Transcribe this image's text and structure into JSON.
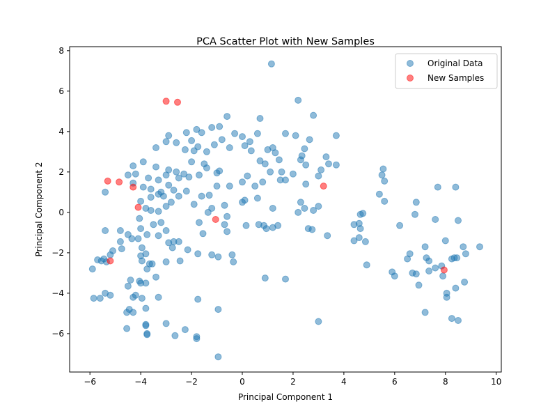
{
  "chart_data": {
    "type": "scatter",
    "title": "PCA Scatter Plot with New Samples",
    "xlabel": "Principal Component 1",
    "ylabel": "Principal Component 2",
    "xlim": [
      -6.8,
      10.2
    ],
    "ylim": [
      -7.9,
      8.2
    ],
    "xticks": [
      -6,
      -4,
      -2,
      0,
      2,
      4,
      6,
      8,
      10
    ],
    "yticks": [
      -6,
      -4,
      -2,
      0,
      2,
      4,
      6,
      8
    ],
    "grid": false,
    "legend_position": "top-right",
    "series": [
      {
        "name": "Original Data",
        "color": "#1f77b4",
        "opacity": 0.5,
        "points": [
          [
            1.15,
            7.35
          ],
          [
            2.2,
            5.55
          ],
          [
            2.8,
            4.8
          ],
          [
            2.65,
            3.6
          ],
          [
            1.7,
            3.9
          ],
          [
            2.1,
            3.8
          ],
          [
            0.7,
            4.65
          ],
          [
            3.7,
            3.8
          ],
          [
            -0.6,
            4.75
          ],
          [
            -0.9,
            4.25
          ],
          [
            -1.2,
            4.2
          ],
          [
            -1.6,
            3.95
          ],
          [
            -1.8,
            4.1
          ],
          [
            -2.2,
            3.95
          ],
          [
            -2.9,
            3.8
          ],
          [
            -3.4,
            3.2
          ],
          [
            -3.0,
            3.5
          ],
          [
            -2.6,
            3.45
          ],
          [
            -2.25,
            3.1
          ],
          [
            -1.75,
            3.25
          ],
          [
            -1.4,
            3.0
          ],
          [
            -1.9,
            3.05
          ],
          [
            -2.0,
            3.55
          ],
          [
            -1.1,
            3.35
          ],
          [
            -0.5,
            3.2
          ],
          [
            -0.3,
            3.9
          ],
          [
            -0.8,
            3.6
          ],
          [
            0.0,
            3.75
          ],
          [
            0.3,
            3.5
          ],
          [
            0.6,
            3.9
          ],
          [
            1.0,
            3.1
          ],
          [
            1.3,
            2.95
          ],
          [
            0.9,
            2.4
          ],
          [
            1.2,
            3.2
          ],
          [
            0.1,
            3.3
          ],
          [
            0.35,
            3.05
          ],
          [
            0.7,
            2.55
          ],
          [
            1.45,
            2.6
          ],
          [
            1.55,
            2.0
          ],
          [
            2.3,
            2.6
          ],
          [
            2.5,
            2.35
          ],
          [
            3.1,
            2.1
          ],
          [
            3.4,
            2.4
          ],
          [
            3.7,
            2.35
          ],
          [
            3.3,
            2.75
          ],
          [
            2.45,
            3.15
          ],
          [
            2.35,
            2.8
          ],
          [
            -3.9,
            2.5
          ],
          [
            -4.3,
            2.3
          ],
          [
            -3.4,
            2.25
          ],
          [
            -2.9,
            2.1
          ],
          [
            -2.3,
            1.9
          ],
          [
            -2.0,
            2.5
          ],
          [
            -1.5,
            2.4
          ],
          [
            -1.4,
            2.2
          ],
          [
            -2.6,
            2.0
          ],
          [
            -3.0,
            1.85
          ],
          [
            -3.3,
            1.6
          ],
          [
            -3.7,
            1.7
          ],
          [
            -4.2,
            1.9
          ],
          [
            -4.5,
            1.85
          ],
          [
            -5.4,
            1.0
          ],
          [
            -4.3,
            1.45
          ],
          [
            -3.9,
            1.25
          ],
          [
            -3.6,
            1.15
          ],
          [
            -3.2,
            1.0
          ],
          [
            -2.9,
            1.35
          ],
          [
            -2.5,
            1.7
          ],
          [
            -2.1,
            1.75
          ],
          [
            -1.7,
            1.85
          ],
          [
            -1.0,
            1.95
          ],
          [
            -0.9,
            2.05
          ],
          [
            -1.0,
            1.3
          ],
          [
            -0.5,
            1.3
          ],
          [
            0.0,
            1.5
          ],
          [
            0.2,
            1.8
          ],
          [
            0.5,
            1.3
          ],
          [
            0.8,
            1.5
          ],
          [
            1.1,
            2.0
          ],
          [
            1.5,
            1.6
          ],
          [
            1.7,
            1.6
          ],
          [
            2.0,
            1.9
          ],
          [
            2.5,
            1.4
          ],
          [
            3.0,
            1.8
          ],
          [
            -1.3,
            0.85
          ],
          [
            -1.6,
            0.8
          ],
          [
            -2.2,
            1.05
          ],
          [
            -2.7,
            1.1
          ],
          [
            -3.3,
            0.9
          ],
          [
            -3.1,
            0.8
          ],
          [
            -3.6,
            0.75
          ],
          [
            -4.0,
            0.55
          ],
          [
            -3.8,
            0.2
          ],
          [
            -4.05,
            -0.3
          ],
          [
            -3.6,
            0.1
          ],
          [
            -3.3,
            0.05
          ],
          [
            -3.0,
            0.3
          ],
          [
            -2.8,
            0.5
          ],
          [
            -2.5,
            0.8
          ],
          [
            -1.9,
            0.4
          ],
          [
            -1.2,
            0.2
          ],
          [
            -1.35,
            0.0
          ],
          [
            -0.7,
            0.35
          ],
          [
            -0.6,
            -0.2
          ],
          [
            0.1,
            0.6
          ],
          [
            0.0,
            0.5
          ],
          [
            0.6,
            0.7
          ],
          [
            1.2,
            0.2
          ],
          [
            2.3,
            0.5
          ],
          [
            2.2,
            0.0
          ],
          [
            2.45,
            0.2
          ],
          [
            2.8,
            0.1
          ],
          [
            3.0,
            0.3
          ],
          [
            -1.7,
            -0.5
          ],
          [
            -1.55,
            -1.05
          ],
          [
            -0.7,
            -0.6
          ],
          [
            -0.6,
            -0.95
          ],
          [
            0.15,
            -0.65
          ],
          [
            0.65,
            -0.6
          ],
          [
            0.85,
            -0.65
          ],
          [
            0.95,
            -0.8
          ],
          [
            1.2,
            -0.75
          ],
          [
            1.4,
            -0.65
          ],
          [
            2.6,
            -0.8
          ],
          [
            2.75,
            -0.85
          ],
          [
            3.35,
            -1.15
          ],
          [
            4.4,
            -0.6
          ],
          [
            4.65,
            -0.1
          ],
          [
            4.75,
            -0.05
          ],
          [
            4.6,
            -0.55
          ],
          [
            4.65,
            -0.8
          ],
          [
            4.6,
            -1.25
          ],
          [
            4.4,
            -1.4
          ],
          [
            4.85,
            -1.45
          ],
          [
            4.9,
            -2.6
          ],
          [
            -4.0,
            -0.8
          ],
          [
            -3.75,
            -1.1
          ],
          [
            -3.3,
            -1.15
          ],
          [
            -3.5,
            -0.6
          ],
          [
            -3.2,
            -0.5
          ],
          [
            -3.0,
            -0.9
          ],
          [
            -4.8,
            -0.9
          ],
          [
            -5.4,
            -0.9
          ],
          [
            -4.5,
            -1.1
          ],
          [
            -4.35,
            -1.3
          ],
          [
            -4.1,
            -1.3
          ],
          [
            -4.8,
            -1.45
          ],
          [
            -3.95,
            -1.75
          ],
          [
            -2.7,
            -1.45
          ],
          [
            -2.5,
            -1.45
          ],
          [
            -2.9,
            -1.5
          ],
          [
            -2.75,
            -1.75
          ],
          [
            -2.15,
            -1.85
          ],
          [
            -1.75,
            -2.05
          ],
          [
            -1.2,
            -2.1
          ],
          [
            -0.95,
            -2.2
          ],
          [
            -0.4,
            -2.1
          ],
          [
            -3.8,
            -2.05
          ],
          [
            -4.0,
            -2.15
          ],
          [
            -3.95,
            -2.4
          ],
          [
            -3.55,
            -2.55
          ],
          [
            -3.65,
            -2.55
          ],
          [
            -3.75,
            -2.8
          ],
          [
            -5.1,
            -1.9
          ],
          [
            -5.2,
            -2.1
          ],
          [
            -5.45,
            -2.3
          ],
          [
            -5.55,
            -2.4
          ],
          [
            -5.35,
            -2.45
          ],
          [
            -4.75,
            -1.8
          ],
          [
            -5.9,
            -2.8
          ],
          [
            -5.7,
            -2.35
          ],
          [
            -3.0,
            -2.45
          ],
          [
            -2.45,
            -2.4
          ],
          [
            -0.35,
            -2.45
          ],
          [
            0.9,
            -3.25
          ],
          [
            1.7,
            -3.3
          ],
          [
            -4.4,
            -3.35
          ],
          [
            -4.05,
            -3.4
          ],
          [
            -4.0,
            -3.5
          ],
          [
            -3.8,
            -3.5
          ],
          [
            -3.4,
            -3.2
          ],
          [
            -4.5,
            -3.65
          ],
          [
            -4.3,
            -4.2
          ],
          [
            -4.2,
            -4.1
          ],
          [
            -3.95,
            -4.25
          ],
          [
            -3.3,
            -4.2
          ],
          [
            -5.4,
            -4.0
          ],
          [
            -5.2,
            -4.1
          ],
          [
            -5.6,
            -4.25
          ],
          [
            -5.85,
            -4.25
          ],
          [
            -4.45,
            -4.8
          ],
          [
            -4.55,
            -4.95
          ],
          [
            -4.3,
            -4.95
          ],
          [
            -3.8,
            -4.75
          ],
          [
            -1.75,
            -4.3
          ],
          [
            -0.95,
            -4.8
          ],
          [
            3.0,
            -5.4
          ],
          [
            -3.8,
            -5.55
          ],
          [
            -3.8,
            -5.6
          ],
          [
            -4.55,
            -5.75
          ],
          [
            -3.0,
            -5.5
          ],
          [
            -3.75,
            -6.0
          ],
          [
            -3.75,
            -6.05
          ],
          [
            -2.65,
            -6.1
          ],
          [
            -2.25,
            -5.8
          ],
          [
            -1.8,
            -6.15
          ],
          [
            -1.8,
            -6.25
          ],
          [
            -0.95,
            -7.15
          ],
          [
            5.55,
            2.15
          ],
          [
            5.5,
            1.85
          ],
          [
            5.6,
            1.55
          ],
          [
            5.4,
            0.9
          ],
          [
            5.6,
            0.55
          ],
          [
            6.2,
            -0.65
          ],
          [
            7.7,
            1.25
          ],
          [
            8.4,
            1.25
          ],
          [
            6.85,
            0.5
          ],
          [
            6.8,
            -0.1
          ],
          [
            7.6,
            -0.35
          ],
          [
            8.5,
            -0.4
          ],
          [
            8.0,
            -1.4
          ],
          [
            8.7,
            -1.7
          ],
          [
            9.35,
            -1.7
          ],
          [
            7.2,
            -1.7
          ],
          [
            6.6,
            -2.05
          ],
          [
            7.25,
            -2.25
          ],
          [
            6.5,
            -2.3
          ],
          [
            7.35,
            -2.4
          ],
          [
            8.35,
            -2.25
          ],
          [
            8.45,
            -2.25
          ],
          [
            8.25,
            -2.3
          ],
          [
            8.8,
            -2.05
          ],
          [
            5.9,
            -2.95
          ],
          [
            6.0,
            -3.15
          ],
          [
            6.7,
            -3.0
          ],
          [
            6.85,
            -3.05
          ],
          [
            7.35,
            -2.9
          ],
          [
            7.6,
            -2.75
          ],
          [
            7.85,
            -2.65
          ],
          [
            7.9,
            -3.15
          ],
          [
            6.95,
            -3.6
          ],
          [
            8.75,
            -3.45
          ],
          [
            8.4,
            -3.75
          ],
          [
            8.05,
            -4.0
          ],
          [
            8.05,
            -4.2
          ],
          [
            7.2,
            -4.95
          ],
          [
            8.25,
            -5.25
          ],
          [
            8.5,
            -5.35
          ]
        ]
      },
      {
        "name": "New Samples",
        "color": "#ff0000",
        "opacity": 0.5,
        "points": [
          [
            -3.0,
            5.5
          ],
          [
            -2.55,
            5.45
          ],
          [
            -5.3,
            1.55
          ],
          [
            -4.85,
            1.5
          ],
          [
            -4.3,
            1.25
          ],
          [
            -4.1,
            0.25
          ],
          [
            -1.05,
            -0.35
          ],
          [
            3.2,
            1.3
          ],
          [
            -5.2,
            -2.4
          ],
          [
            7.95,
            -2.85
          ]
        ]
      }
    ]
  }
}
